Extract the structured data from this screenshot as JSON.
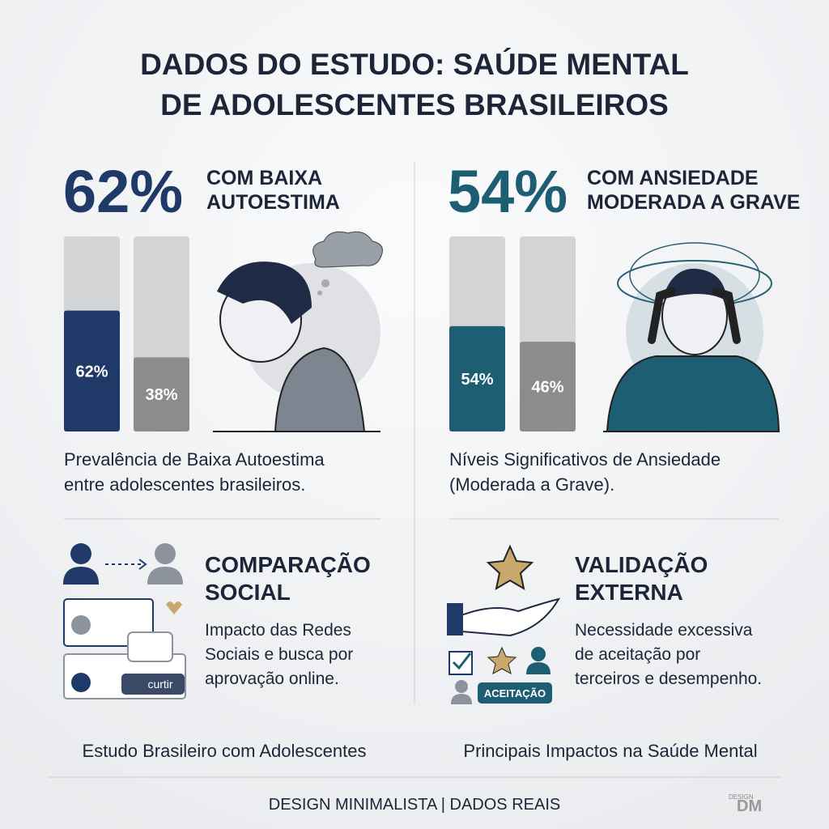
{
  "title": [
    "DADOS DO ESTUDO: SAÚDE MENTAL",
    "DE ADOLESCENTES BRASILEIROS"
  ],
  "panels": [
    {
      "headline": "62%",
      "heading": [
        "COM BAIXA",
        "AUTOESTIMA"
      ],
      "bars": {
        "ylim": [
          0,
          100
        ],
        "values": [
          62,
          38
        ],
        "value_labels": [
          "62%",
          "38%"
        ],
        "colors": [
          "#1f3a68",
          "#8c8c8c"
        ]
      },
      "caption": [
        "Prevalência de Baixa Autoestima",
        "entre adolescentes brasileiros."
      ]
    },
    {
      "headline": "54%",
      "heading": [
        "COM ANSIEDADE",
        "MODERADA A GRAVE"
      ],
      "bars": {
        "ylim": [
          0,
          100
        ],
        "values": [
          54,
          46
        ],
        "value_labels": [
          "54%",
          "46%"
        ],
        "colors": [
          "#1d5e72",
          "#8c8c8c"
        ]
      },
      "caption": [
        "Níveis Significativos de Ansiedade",
        "(Moderada a Grave)."
      ]
    }
  ],
  "features": [
    {
      "heading": [
        "COMPARAÇÃO",
        "SOCIAL"
      ],
      "text": [
        "Impacto das Redes",
        "Sociais e busca por",
        "aprovação online."
      ],
      "badge": "curtir"
    },
    {
      "heading": [
        "VALIDAÇÃO",
        "EXTERNA"
      ],
      "text": [
        "Necessidade excessiva",
        "de aceitação por",
        "terceiros e desempenho."
      ],
      "badge": "ACEITAÇÃO"
    }
  ],
  "footers": [
    "Estudo Brasileiro com Adolescentes",
    "Principais Impactos na Saúde Mental"
  ],
  "tagline": "DESIGN MINIMALISTA | DADOS REAIS",
  "logo": {
    "small": "DESIGN",
    "mark": "DM"
  }
}
